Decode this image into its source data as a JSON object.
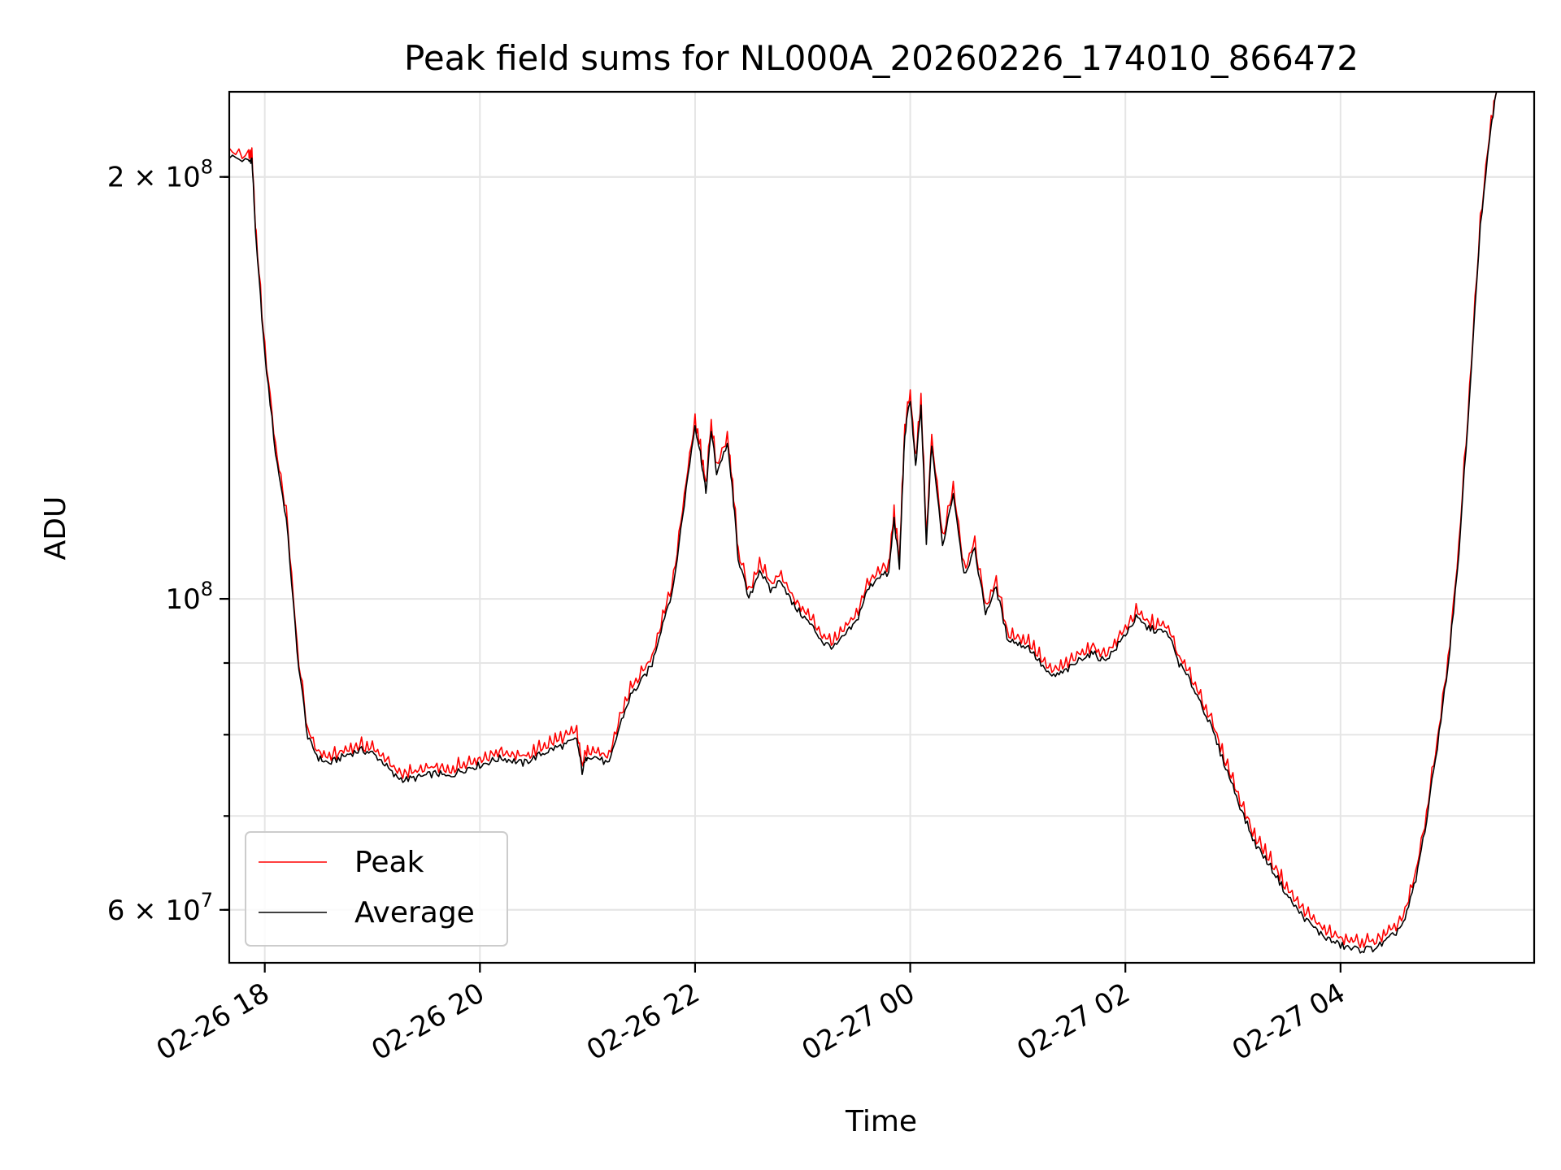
{
  "chart_data": {
    "type": "line",
    "title": "Peak field sums for NL000A_20260226_174010_866472",
    "xlabel": "Time",
    "ylabel": "ADU",
    "yscale": "log",
    "ylim": [
      55000000,
      230000000
    ],
    "xlim_hours": [
      -0.33,
      11.8
    ],
    "grid": true,
    "legend_position": "lower-left",
    "x_ticks": [
      {
        "label": "02-26 18",
        "hour": 0
      },
      {
        "label": "02-26 20",
        "hour": 2
      },
      {
        "label": "02-26 22",
        "hour": 4
      },
      {
        "label": "02-27 00",
        "hour": 6
      },
      {
        "label": "02-27 02",
        "hour": 8
      },
      {
        "label": "02-27 04",
        "hour": 10
      }
    ],
    "y_major_ticks": [
      {
        "value": 100000000,
        "mantissa": "",
        "base": "10",
        "exp": "8"
      },
      {
        "value": 200000000,
        "mantissa": "2 × ",
        "base": "10",
        "exp": "8"
      },
      {
        "value": 60000000,
        "mantissa": "6 × ",
        "base": "10",
        "exp": "7"
      }
    ],
    "y_minor_ticks": [
      60000000,
      70000000,
      80000000,
      90000000,
      200000000
    ],
    "series": [
      {
        "name": "Peak",
        "color": "#ff0000",
        "points": [
          [
            -0.33,
            208
          ],
          [
            -0.15,
            206
          ],
          [
            -0.12,
            207
          ],
          [
            -0.08,
            180
          ],
          [
            0.0,
            150
          ],
          [
            0.1,
            128
          ],
          [
            0.2,
            115
          ],
          [
            0.3,
            92
          ],
          [
            0.4,
            80
          ],
          [
            0.5,
            77.5
          ],
          [
            0.6,
            76.8
          ],
          [
            0.7,
            77.4
          ],
          [
            0.8,
            78.0
          ],
          [
            0.9,
            78.3
          ],
          [
            1.0,
            78.0
          ],
          [
            1.1,
            77.0
          ],
          [
            1.2,
            75.3
          ],
          [
            1.3,
            74.8
          ],
          [
            1.4,
            75.0
          ],
          [
            1.5,
            75.3
          ],
          [
            1.6,
            75.6
          ],
          [
            1.7,
            75.0
          ],
          [
            1.8,
            75.8
          ],
          [
            1.9,
            76.3
          ],
          [
            2.0,
            76.6
          ],
          [
            2.1,
            77.1
          ],
          [
            2.2,
            77.6
          ],
          [
            2.3,
            77.2
          ],
          [
            2.4,
            76.8
          ],
          [
            2.5,
            77.5
          ],
          [
            2.6,
            78.3
          ],
          [
            2.7,
            79.0
          ],
          [
            2.8,
            79.5
          ],
          [
            2.9,
            80.2
          ],
          [
            2.95,
            75.8
          ],
          [
            3.0,
            78.0
          ],
          [
            3.1,
            77.5
          ],
          [
            3.2,
            76.6
          ],
          [
            3.3,
            82.0
          ],
          [
            3.4,
            86.0
          ],
          [
            3.5,
            88.0
          ],
          [
            3.6,
            90.5
          ],
          [
            3.7,
            97.0
          ],
          [
            3.8,
            103.0
          ],
          [
            3.9,
            118.0
          ],
          [
            4.0,
            134.0
          ],
          [
            4.05,
            128.0
          ],
          [
            4.1,
            120.0
          ],
          [
            4.15,
            133.0
          ],
          [
            4.2,
            124.0
          ],
          [
            4.3,
            130.0
          ],
          [
            4.35,
            120.0
          ],
          [
            4.4,
            108.0
          ],
          [
            4.5,
            100.5
          ],
          [
            4.6,
            106.0
          ],
          [
            4.7,
            102.0
          ],
          [
            4.8,
            104.0
          ],
          [
            4.9,
            100.0
          ],
          [
            5.0,
            98.0
          ],
          [
            5.1,
            96.0
          ],
          [
            5.2,
            93.5
          ],
          [
            5.3,
            93.0
          ],
          [
            5.4,
            95.0
          ],
          [
            5.5,
            97.0
          ],
          [
            5.6,
            102.0
          ],
          [
            5.7,
            104.5
          ],
          [
            5.8,
            105.0
          ],
          [
            5.85,
            115.0
          ],
          [
            5.9,
            106.0
          ],
          [
            5.95,
            132.0
          ],
          [
            6.0,
            140.0
          ],
          [
            6.05,
            125.0
          ],
          [
            6.1,
            138.0
          ],
          [
            6.15,
            110.0
          ],
          [
            6.2,
            130.0
          ],
          [
            6.3,
            110.0
          ],
          [
            6.4,
            120.0
          ],
          [
            6.5,
            105.0
          ],
          [
            6.6,
            109.0
          ],
          [
            6.7,
            98.5
          ],
          [
            6.8,
            102.5
          ],
          [
            6.9,
            94.5
          ],
          [
            7.0,
            93.5
          ],
          [
            7.1,
            93.0
          ],
          [
            7.2,
            90.8
          ],
          [
            7.3,
            88.5
          ],
          [
            7.4,
            89.0
          ],
          [
            7.5,
            90.0
          ],
          [
            7.6,
            91.5
          ],
          [
            7.7,
            92.0
          ],
          [
            7.8,
            91.0
          ],
          [
            7.9,
            92.5
          ],
          [
            8.0,
            95.0
          ],
          [
            8.1,
            97.5
          ],
          [
            8.2,
            96.0
          ],
          [
            8.3,
            95.5
          ],
          [
            8.4,
            95.0
          ],
          [
            8.5,
            90.5
          ],
          [
            8.6,
            88.0
          ],
          [
            8.7,
            85.0
          ],
          [
            8.8,
            81.5
          ],
          [
            8.9,
            77.5
          ],
          [
            9.0,
            74.0
          ],
          [
            9.1,
            70.5
          ],
          [
            9.2,
            67.5
          ],
          [
            9.3,
            65.8
          ],
          [
            9.4,
            64.0
          ],
          [
            9.5,
            62.0
          ],
          [
            9.6,
            60.5
          ],
          [
            9.7,
            59.3
          ],
          [
            9.8,
            58.3
          ],
          [
            9.9,
            57.6
          ],
          [
            10.0,
            57.0
          ],
          [
            10.1,
            56.8
          ],
          [
            10.2,
            56.7
          ],
          [
            10.3,
            56.8
          ],
          [
            10.4,
            57.2
          ],
          [
            10.5,
            58.0
          ],
          [
            10.6,
            59.5
          ],
          [
            10.7,
            63.5
          ],
          [
            10.8,
            70.0
          ],
          [
            10.9,
            79.0
          ],
          [
            11.0,
            90.0
          ],
          [
            11.1,
            108.0
          ],
          [
            11.2,
            140.0
          ],
          [
            11.3,
            185.0
          ],
          [
            11.4,
            218.0
          ],
          [
            11.45,
            230.0
          ]
        ]
      },
      {
        "name": "Average",
        "color": "#000000",
        "points": [
          [
            -0.33,
            207
          ],
          [
            -0.15,
            205
          ],
          [
            -0.12,
            206
          ],
          [
            -0.08,
            179
          ],
          [
            0.0,
            149
          ],
          [
            0.1,
            127
          ],
          [
            0.2,
            114
          ],
          [
            0.3,
            91.5
          ],
          [
            0.4,
            79.5
          ],
          [
            0.5,
            77.0
          ],
          [
            0.6,
            76.3
          ],
          [
            0.7,
            77.0
          ],
          [
            0.8,
            77.6
          ],
          [
            0.9,
            78.0
          ],
          [
            1.0,
            77.6
          ],
          [
            1.1,
            76.5
          ],
          [
            1.2,
            74.8
          ],
          [
            1.3,
            74.3
          ],
          [
            1.4,
            74.5
          ],
          [
            1.5,
            74.8
          ],
          [
            1.6,
            75.1
          ],
          [
            1.7,
            74.6
          ],
          [
            1.8,
            75.3
          ],
          [
            1.9,
            75.8
          ],
          [
            2.0,
            76.1
          ],
          [
            2.1,
            76.6
          ],
          [
            2.2,
            77.0
          ],
          [
            2.3,
            76.7
          ],
          [
            2.4,
            76.3
          ],
          [
            2.5,
            77.0
          ],
          [
            2.6,
            77.7
          ],
          [
            2.7,
            78.3
          ],
          [
            2.8,
            78.7
          ],
          [
            2.9,
            79.4
          ],
          [
            2.95,
            75.3
          ],
          [
            3.0,
            77.4
          ],
          [
            3.1,
            77.0
          ],
          [
            3.2,
            76.1
          ],
          [
            3.3,
            81.2
          ],
          [
            3.4,
            85.3
          ],
          [
            3.5,
            87.3
          ],
          [
            3.6,
            89.8
          ],
          [
            3.7,
            96.2
          ],
          [
            3.8,
            102.0
          ],
          [
            3.9,
            117.0
          ],
          [
            4.0,
            133.0
          ],
          [
            4.05,
            127.0
          ],
          [
            4.1,
            119.0
          ],
          [
            4.15,
            132.0
          ],
          [
            4.2,
            123.0
          ],
          [
            4.3,
            129.0
          ],
          [
            4.35,
            119.0
          ],
          [
            4.4,
            107.0
          ],
          [
            4.5,
            99.8
          ],
          [
            4.6,
            105.0
          ],
          [
            4.7,
            101.3
          ],
          [
            4.8,
            103.2
          ],
          [
            4.9,
            99.3
          ],
          [
            5.0,
            97.3
          ],
          [
            5.1,
            95.3
          ],
          [
            5.2,
            92.9
          ],
          [
            5.3,
            92.4
          ],
          [
            5.4,
            94.3
          ],
          [
            5.5,
            96.3
          ],
          [
            5.6,
            101.3
          ],
          [
            5.7,
            103.8
          ],
          [
            5.8,
            104.2
          ],
          [
            5.85,
            114.0
          ],
          [
            5.9,
            105.2
          ],
          [
            5.95,
            131.0
          ],
          [
            6.0,
            139.0
          ],
          [
            6.05,
            124.0
          ],
          [
            6.1,
            137.0
          ],
          [
            6.15,
            109.0
          ],
          [
            6.2,
            129.0
          ],
          [
            6.3,
            109.0
          ],
          [
            6.4,
            119.0
          ],
          [
            6.5,
            104.2
          ],
          [
            6.6,
            108.2
          ],
          [
            6.7,
            97.8
          ],
          [
            6.8,
            101.8
          ],
          [
            6.9,
            93.9
          ],
          [
            7.0,
            92.9
          ],
          [
            7.1,
            92.4
          ],
          [
            7.2,
            90.2
          ],
          [
            7.3,
            88.0
          ],
          [
            7.4,
            88.4
          ],
          [
            7.5,
            89.4
          ],
          [
            7.6,
            90.9
          ],
          [
            7.7,
            91.4
          ],
          [
            7.8,
            90.4
          ],
          [
            7.9,
            91.9
          ],
          [
            8.0,
            94.4
          ],
          [
            8.1,
            96.9
          ],
          [
            8.2,
            95.4
          ],
          [
            8.3,
            94.9
          ],
          [
            8.4,
            94.4
          ],
          [
            8.5,
            89.9
          ],
          [
            8.6,
            87.4
          ],
          [
            8.7,
            84.4
          ],
          [
            8.8,
            80.9
          ],
          [
            8.9,
            77.0
          ],
          [
            9.0,
            73.5
          ],
          [
            9.1,
            70.0
          ],
          [
            9.2,
            67.0
          ],
          [
            9.3,
            65.3
          ],
          [
            9.4,
            63.5
          ],
          [
            9.5,
            61.5
          ],
          [
            9.6,
            60.0
          ],
          [
            9.7,
            58.8
          ],
          [
            9.8,
            57.8
          ],
          [
            9.9,
            57.1
          ],
          [
            10.0,
            56.6
          ],
          [
            10.1,
            56.3
          ],
          [
            10.2,
            56.2
          ],
          [
            10.3,
            56.3
          ],
          [
            10.4,
            56.8
          ],
          [
            10.5,
            57.6
          ],
          [
            10.6,
            59.0
          ],
          [
            10.7,
            63.0
          ],
          [
            10.8,
            69.5
          ],
          [
            10.9,
            78.5
          ],
          [
            11.0,
            89.5
          ],
          [
            11.1,
            107.0
          ],
          [
            11.2,
            139.0
          ],
          [
            11.3,
            184.0
          ],
          [
            11.4,
            217.0
          ],
          [
            11.45,
            230.0
          ]
        ]
      }
    ],
    "value_unit_note": "series point values are in millions of ADU"
  }
}
